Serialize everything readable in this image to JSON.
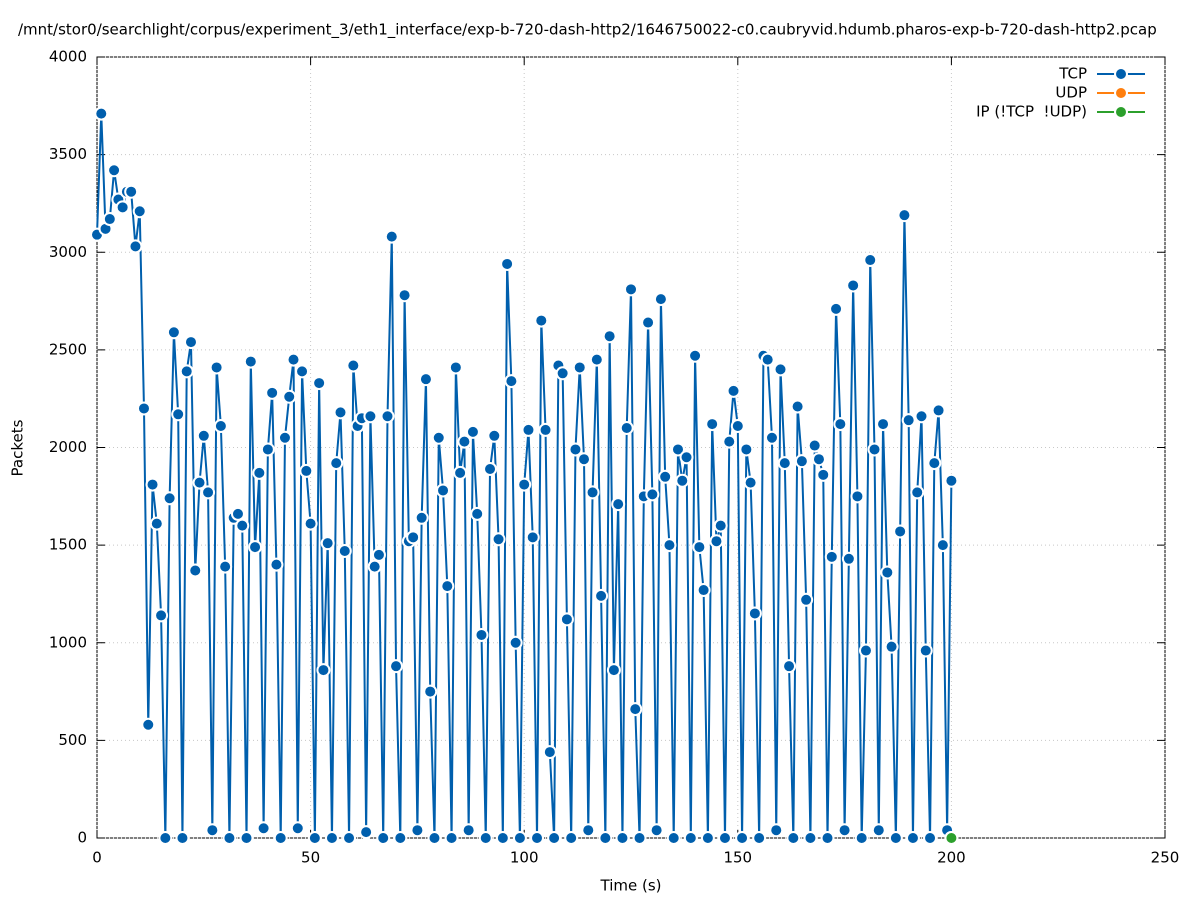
{
  "chart_data": {
    "type": "line",
    "title": "/mnt/stor0/searchlight/corpus/experiment_3/eth1_interface/exp-b-720-dash-http2/1646750022-c0.caubryvid.hdumb.pharos-exp-b-720-dash-http2.pcap",
    "x_label": "Time (s)",
    "y_label": "Packets",
    "xlim": [
      0,
      250
    ],
    "xticks": [
      0,
      50,
      100,
      150,
      200,
      250
    ],
    "ylim": [
      0,
      4000
    ],
    "yticks": [
      0,
      500,
      1000,
      1500,
      2000,
      2500,
      3000,
      3500,
      4000
    ],
    "grid": true,
    "legend": "top-right",
    "series": [
      {
        "name": "TCP",
        "color": "#005fad",
        "x": [
          0,
          1,
          2,
          3,
          4,
          5,
          6,
          7,
          8,
          9,
          10,
          11,
          12,
          13,
          14,
          15,
          16,
          17,
          18,
          19,
          20,
          21,
          22,
          23,
          24,
          25,
          26,
          27,
          28,
          29,
          30,
          31,
          32,
          33,
          34,
          35,
          36,
          37,
          38,
          39,
          40,
          41,
          42,
          43,
          44,
          45,
          46,
          47,
          48,
          49,
          50,
          51,
          52,
          53,
          54,
          55,
          56,
          57,
          58,
          59,
          60,
          61,
          62,
          63,
          64,
          65,
          66,
          67,
          68,
          69,
          70,
          71,
          72,
          73,
          74,
          75,
          76,
          77,
          78,
          79,
          80,
          81,
          82,
          83,
          84,
          85,
          86,
          87,
          88,
          89,
          90,
          91,
          92,
          93,
          94,
          95,
          96,
          97,
          98,
          99,
          100,
          101,
          102,
          103,
          104,
          105,
          106,
          107,
          108,
          109,
          110,
          111,
          112,
          113,
          114,
          115,
          116,
          117,
          118,
          119,
          120,
          121,
          122,
          123,
          124,
          125,
          126,
          127,
          128,
          129,
          130,
          131,
          132,
          133,
          134,
          135,
          136,
          137,
          138,
          139,
          140,
          141,
          142,
          143,
          144,
          145,
          146,
          147,
          148,
          149,
          150,
          151,
          152,
          153,
          154,
          155,
          156,
          157,
          158,
          159,
          160,
          161,
          162,
          163,
          164,
          165,
          166,
          167,
          168,
          169,
          170,
          171,
          172,
          173,
          174,
          175,
          176,
          177,
          178,
          179,
          180,
          181,
          182,
          183,
          184,
          185,
          186,
          187,
          188,
          189,
          190,
          191,
          192,
          193,
          194,
          195,
          196,
          197,
          198,
          199,
          200
        ],
        "values": [
          3090,
          3710,
          3120,
          3170,
          3420,
          3270,
          3230,
          3310,
          3310,
          3030,
          3210,
          2200,
          580,
          1810,
          1610,
          1140,
          0,
          1740,
          2590,
          2170,
          0,
          2390,
          2540,
          1370,
          1820,
          2060,
          1770,
          40,
          2410,
          2110,
          1390,
          0,
          1640,
          1660,
          1600,
          0,
          2440,
          1490,
          1870,
          50,
          1990,
          2280,
          1400,
          0,
          2050,
          2260,
          2450,
          50,
          2390,
          1880,
          1610,
          0,
          2330,
          860,
          1510,
          0,
          1920,
          2180,
          1470,
          0,
          2420,
          2110,
          2150,
          30,
          2160,
          1390,
          1450,
          0,
          2160,
          3080,
          880,
          0,
          2780,
          1520,
          1540,
          40,
          1640,
          2350,
          750,
          0,
          2050,
          1780,
          1290,
          0,
          2410,
          1870,
          2030,
          40,
          2080,
          1660,
          1040,
          0,
          1890,
          2060,
          1530,
          0,
          2940,
          2340,
          1000,
          0,
          1810,
          2090,
          1540,
          0,
          2650,
          2090,
          440,
          0,
          2420,
          2380,
          1120,
          0,
          1990,
          2410,
          1940,
          40,
          1770,
          2450,
          1240,
          0,
          2570,
          860,
          1710,
          0,
          2100,
          2810,
          660,
          0,
          1750,
          2640,
          1760,
          40,
          2760,
          1850,
          1500,
          0,
          1990,
          1830,
          1950,
          0,
          2470,
          1490,
          1270,
          0,
          2120,
          1520,
          1600,
          0,
          2030,
          2290,
          2110,
          0,
          1990,
          1820,
          1150,
          0,
          2470,
          2450,
          2050,
          40,
          2400,
          1920,
          880,
          0,
          2210,
          1930,
          1220,
          0,
          2010,
          1940,
          1860,
          0,
          1440,
          2710,
          2120,
          40,
          1430,
          2830,
          1750,
          0,
          960,
          2960,
          1990,
          40,
          2120,
          1360,
          980,
          0,
          1570,
          3190,
          2140,
          0,
          1770,
          2160,
          960,
          0,
          1920,
          2190,
          1500,
          40,
          1830
        ]
      },
      {
        "name": "UDP",
        "color": "#ff7f0e",
        "x": [
          200
        ],
        "values": [
          0
        ]
      },
      {
        "name": "IP (!TCP  !UDP)",
        "color": "#2ca02c",
        "x": [
          200
        ],
        "values": [
          0
        ]
      }
    ]
  }
}
